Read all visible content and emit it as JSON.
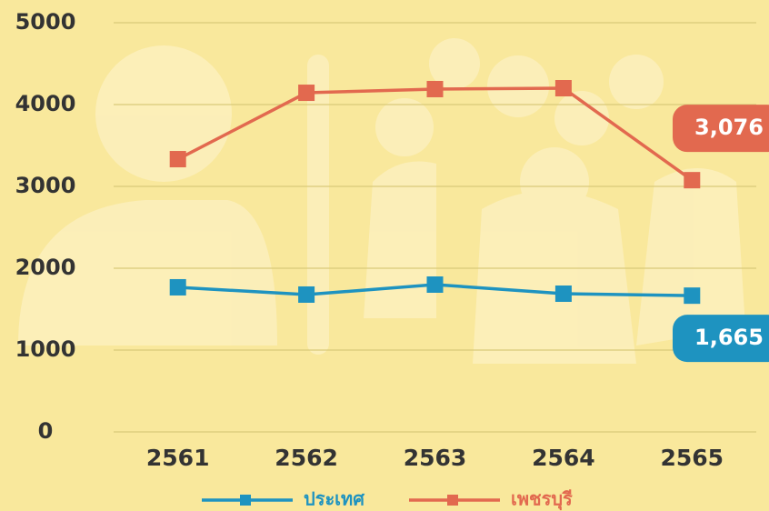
{
  "chart_data": {
    "type": "line",
    "categories": [
      "2561",
      "2562",
      "2563",
      "2564",
      "2565"
    ],
    "series": [
      {
        "name": "ประเทศ",
        "color": "#1e93c0",
        "values": [
          1767,
          1678,
          1800,
          1689,
          1665
        ],
        "value_labels": [
          null,
          null,
          null,
          null,
          "1,665"
        ]
      },
      {
        "name": "เพชรบุรี",
        "color": "#e2694f",
        "values": [
          3333,
          4144,
          4189,
          4200,
          3076
        ],
        "value_labels": [
          null,
          null,
          null,
          null,
          "3,076"
        ]
      }
    ],
    "ylim": [
      0,
      5000
    ],
    "yticks": [
      0,
      1000,
      2000,
      3000,
      4000,
      5000
    ],
    "grid": true,
    "legend": "bottom"
  }
}
